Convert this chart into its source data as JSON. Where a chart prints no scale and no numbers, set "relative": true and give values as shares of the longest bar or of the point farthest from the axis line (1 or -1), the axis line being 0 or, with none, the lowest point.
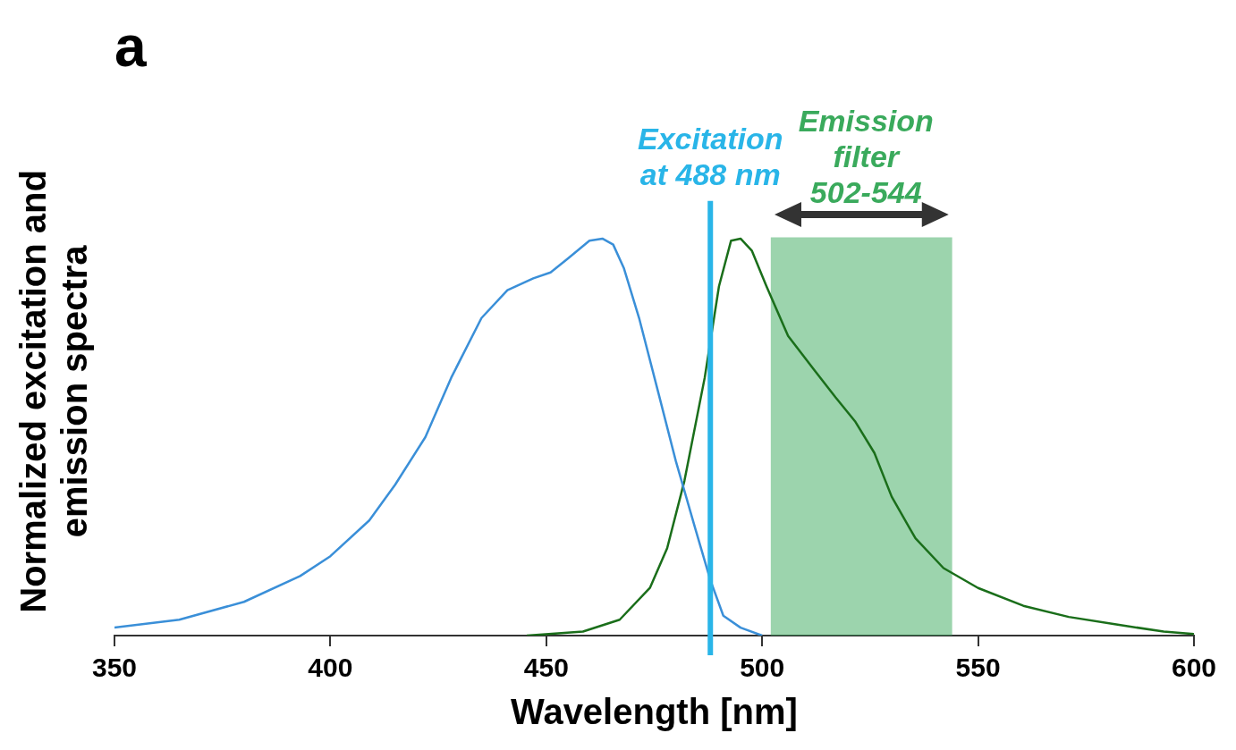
{
  "chart_data": {
    "type": "line",
    "title": "a",
    "xlabel": "Wavelength [nm]",
    "ylabel": "Normalized excitation and emission spectra",
    "relative": true,
    "xlim": [
      350,
      600
    ],
    "xticks": [
      350,
      400,
      450,
      500,
      550,
      600
    ],
    "grid": false,
    "legend": false,
    "marker": "none",
    "line_style": "solid",
    "series": [
      {
        "color": "#3a8fd8",
        "x": [
          350,
          365,
          380,
          393,
          400,
          409,
          415,
          422,
          428,
          435,
          441,
          447,
          451,
          455,
          460,
          463,
          465.5,
          468,
          471.5,
          476,
          480,
          484.5,
          488,
          491,
          495,
          500
        ],
        "values": [
          0.02,
          0.04,
          0.085,
          0.15,
          0.2,
          0.29,
          0.38,
          0.5,
          0.65,
          0.8,
          0.87,
          0.9,
          0.915,
          0.95,
          0.995,
          1.0,
          0.985,
          0.925,
          0.8,
          0.61,
          0.44,
          0.27,
          0.14,
          0.05,
          0.02,
          0
        ]
      },
      {
        "color": "#1a6e1a",
        "x": [
          445.5,
          458.5,
          467,
          474,
          478,
          482,
          486.7,
          490,
          492.8,
          495,
          497.6,
          501,
          506,
          512,
          517,
          521.5,
          526,
          530,
          535.5,
          542,
          550,
          560.5,
          571,
          582,
          593,
          600
        ],
        "values": [
          0,
          0.01,
          0.04,
          0.12,
          0.22,
          0.39,
          0.65,
          0.88,
          0.995,
          1.0,
          0.97,
          0.88,
          0.755,
          0.67,
          0.6,
          0.54,
          0.46,
          0.35,
          0.245,
          0.17,
          0.12,
          0.075,
          0.047,
          0.028,
          0.01,
          0.004
        ]
      }
    ],
    "ref_lines": [
      {
        "axis": "x",
        "value": 488,
        "label": "Excitation at 488 nm",
        "color": "#29b5e8"
      }
    ],
    "bands": [
      {
        "axis": "x",
        "from": 502,
        "to": 544,
        "label": "Emission filter 502-544",
        "color": "#3aaa5c"
      }
    ]
  }
}
